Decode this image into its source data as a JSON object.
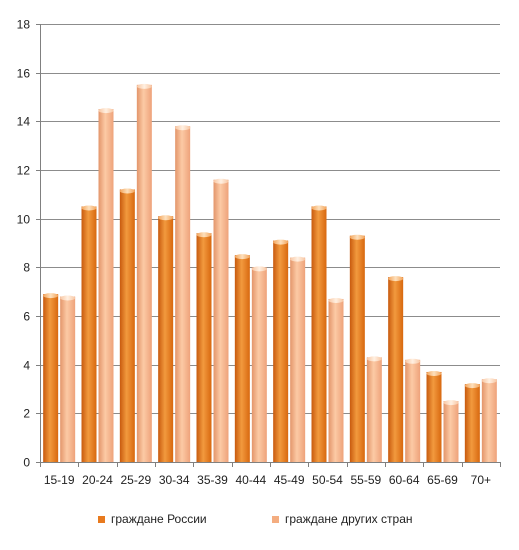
{
  "chart_data": {
    "type": "bar",
    "categories": [
      "15-19",
      "20-24",
      "25-29",
      "30-34",
      "35-39",
      "40-44",
      "45-49",
      "50-54",
      "55-59",
      "60-64",
      "65-69",
      "70+"
    ],
    "series": [
      {
        "name": "граждане России",
        "color": "#e87a1e",
        "values": [
          6.9,
          10.5,
          11.2,
          10.1,
          9.4,
          8.5,
          9.1,
          10.5,
          9.3,
          7.6,
          3.7,
          3.2
        ]
      },
      {
        "name": "граждане других стран",
        "color": "#f4ad80",
        "values": [
          6.8,
          14.5,
          15.5,
          13.8,
          11.6,
          8.0,
          8.4,
          6.7,
          4.3,
          4.2,
          2.5,
          3.4
        ]
      }
    ],
    "yticks": [
      0,
      2,
      4,
      6,
      8,
      10,
      12,
      14,
      16,
      18
    ],
    "ylim": [
      0,
      18
    ],
    "grid": true,
    "legend_position": "bottom"
  }
}
